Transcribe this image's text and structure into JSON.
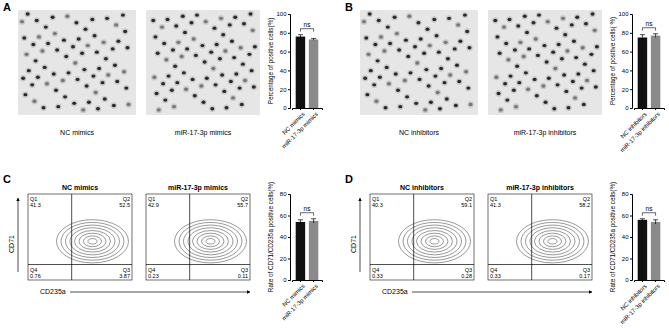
{
  "chart_data": [
    {
      "type": "bar",
      "categories": [
        "NC mimics",
        "miR-17-3p mimics"
      ],
      "values": [
        76,
        73
      ],
      "errors": [
        2,
        1
      ],
      "colors": [
        "#111111",
        "#8a8a8a"
      ],
      "y_label": "Percentage of positive cells(%)",
      "ylim": [
        0,
        100
      ],
      "yticks": [
        0,
        20,
        40,
        60,
        80,
        100
      ],
      "annotation": "ns"
    },
    {
      "type": "bar",
      "categories": [
        "NC inhibitors",
        "miR-17-3p inhibitors"
      ],
      "values": [
        75,
        77
      ],
      "errors": [
        3,
        2
      ],
      "colors": [
        "#111111",
        "#8a8a8a"
      ],
      "y_label": "Percentage of positive cells( %)",
      "ylim": [
        0,
        100
      ],
      "yticks": [
        0,
        20,
        40,
        60,
        80,
        100
      ],
      "annotation": "ns"
    },
    {
      "type": "bar",
      "categories": [
        "NC mimics",
        "miR-17-3p mimics"
      ],
      "values": [
        54,
        55
      ],
      "errors": [
        2,
        2
      ],
      "colors": [
        "#111111",
        "#8a8a8a"
      ],
      "y_label": "Rate of CD71/CD235a positive cells(%)",
      "ylim": [
        0,
        80
      ],
      "yticks": [
        0,
        20,
        40,
        60,
        80
      ],
      "annotation": "ns"
    },
    {
      "type": "bar",
      "categories": [
        "NC inhibitors",
        "miR-17-3p inhibitors"
      ],
      "values": [
        56,
        54
      ],
      "errors": [
        1,
        2
      ],
      "colors": [
        "#111111",
        "#8a8a8a"
      ],
      "y_label": "Rate of CD71/CD235a positive cells(%)",
      "ylim": [
        0,
        80
      ],
      "yticks": [
        0,
        20,
        40,
        60,
        80
      ],
      "annotation": "ns"
    }
  ],
  "panels": [
    {
      "letter": "A",
      "images": [
        "NC mimics",
        "miR-17-3p mimics"
      ]
    },
    {
      "letter": "B",
      "images": [
        "NC inhibitors",
        "miR-17-3p inhibitors"
      ]
    },
    {
      "letter": "C",
      "flow": {
        "y_label": "CD71",
        "x_label": "CD235a",
        "plots": [
          {
            "title": "NC mimics",
            "quadrants": [
              {
                "name": "Q1",
                "value": 41.3
              },
              {
                "name": "Q2",
                "value": 52.5
              },
              {
                "name": "Q3",
                "value": 3.87
              },
              {
                "name": "Q4",
                "value": 0.76
              }
            ]
          },
          {
            "title": "miR-17-3p mimics",
            "quadrants": [
              {
                "name": "Q1",
                "value": 42.9
              },
              {
                "name": "Q2",
                "value": 55.7
              },
              {
                "name": "Q3",
                "value": 0.11
              },
              {
                "name": "Q4",
                "value": 0.23
              }
            ]
          }
        ]
      }
    },
    {
      "letter": "D",
      "flow": {
        "y_label": "CD71",
        "x_label": "CD235a",
        "plots": [
          {
            "title": "NC inhibitors",
            "quadrants": [
              {
                "name": "Q1",
                "value": 40.3
              },
              {
                "name": "Q2",
                "value": 59.1
              },
              {
                "name": "Q3",
                "value": 0.28
              },
              {
                "name": "Q4",
                "value": 0.33
              }
            ]
          },
          {
            "title": "miR-17-3p inhibitors",
            "quadrants": [
              {
                "name": "Q1",
                "value": 41.3
              },
              {
                "name": "Q2",
                "value": 58.2
              },
              {
                "name": "Q3",
                "value": 0.17
              },
              {
                "name": "Q4",
                "value": 0.33
              }
            ]
          }
        ]
      }
    }
  ]
}
